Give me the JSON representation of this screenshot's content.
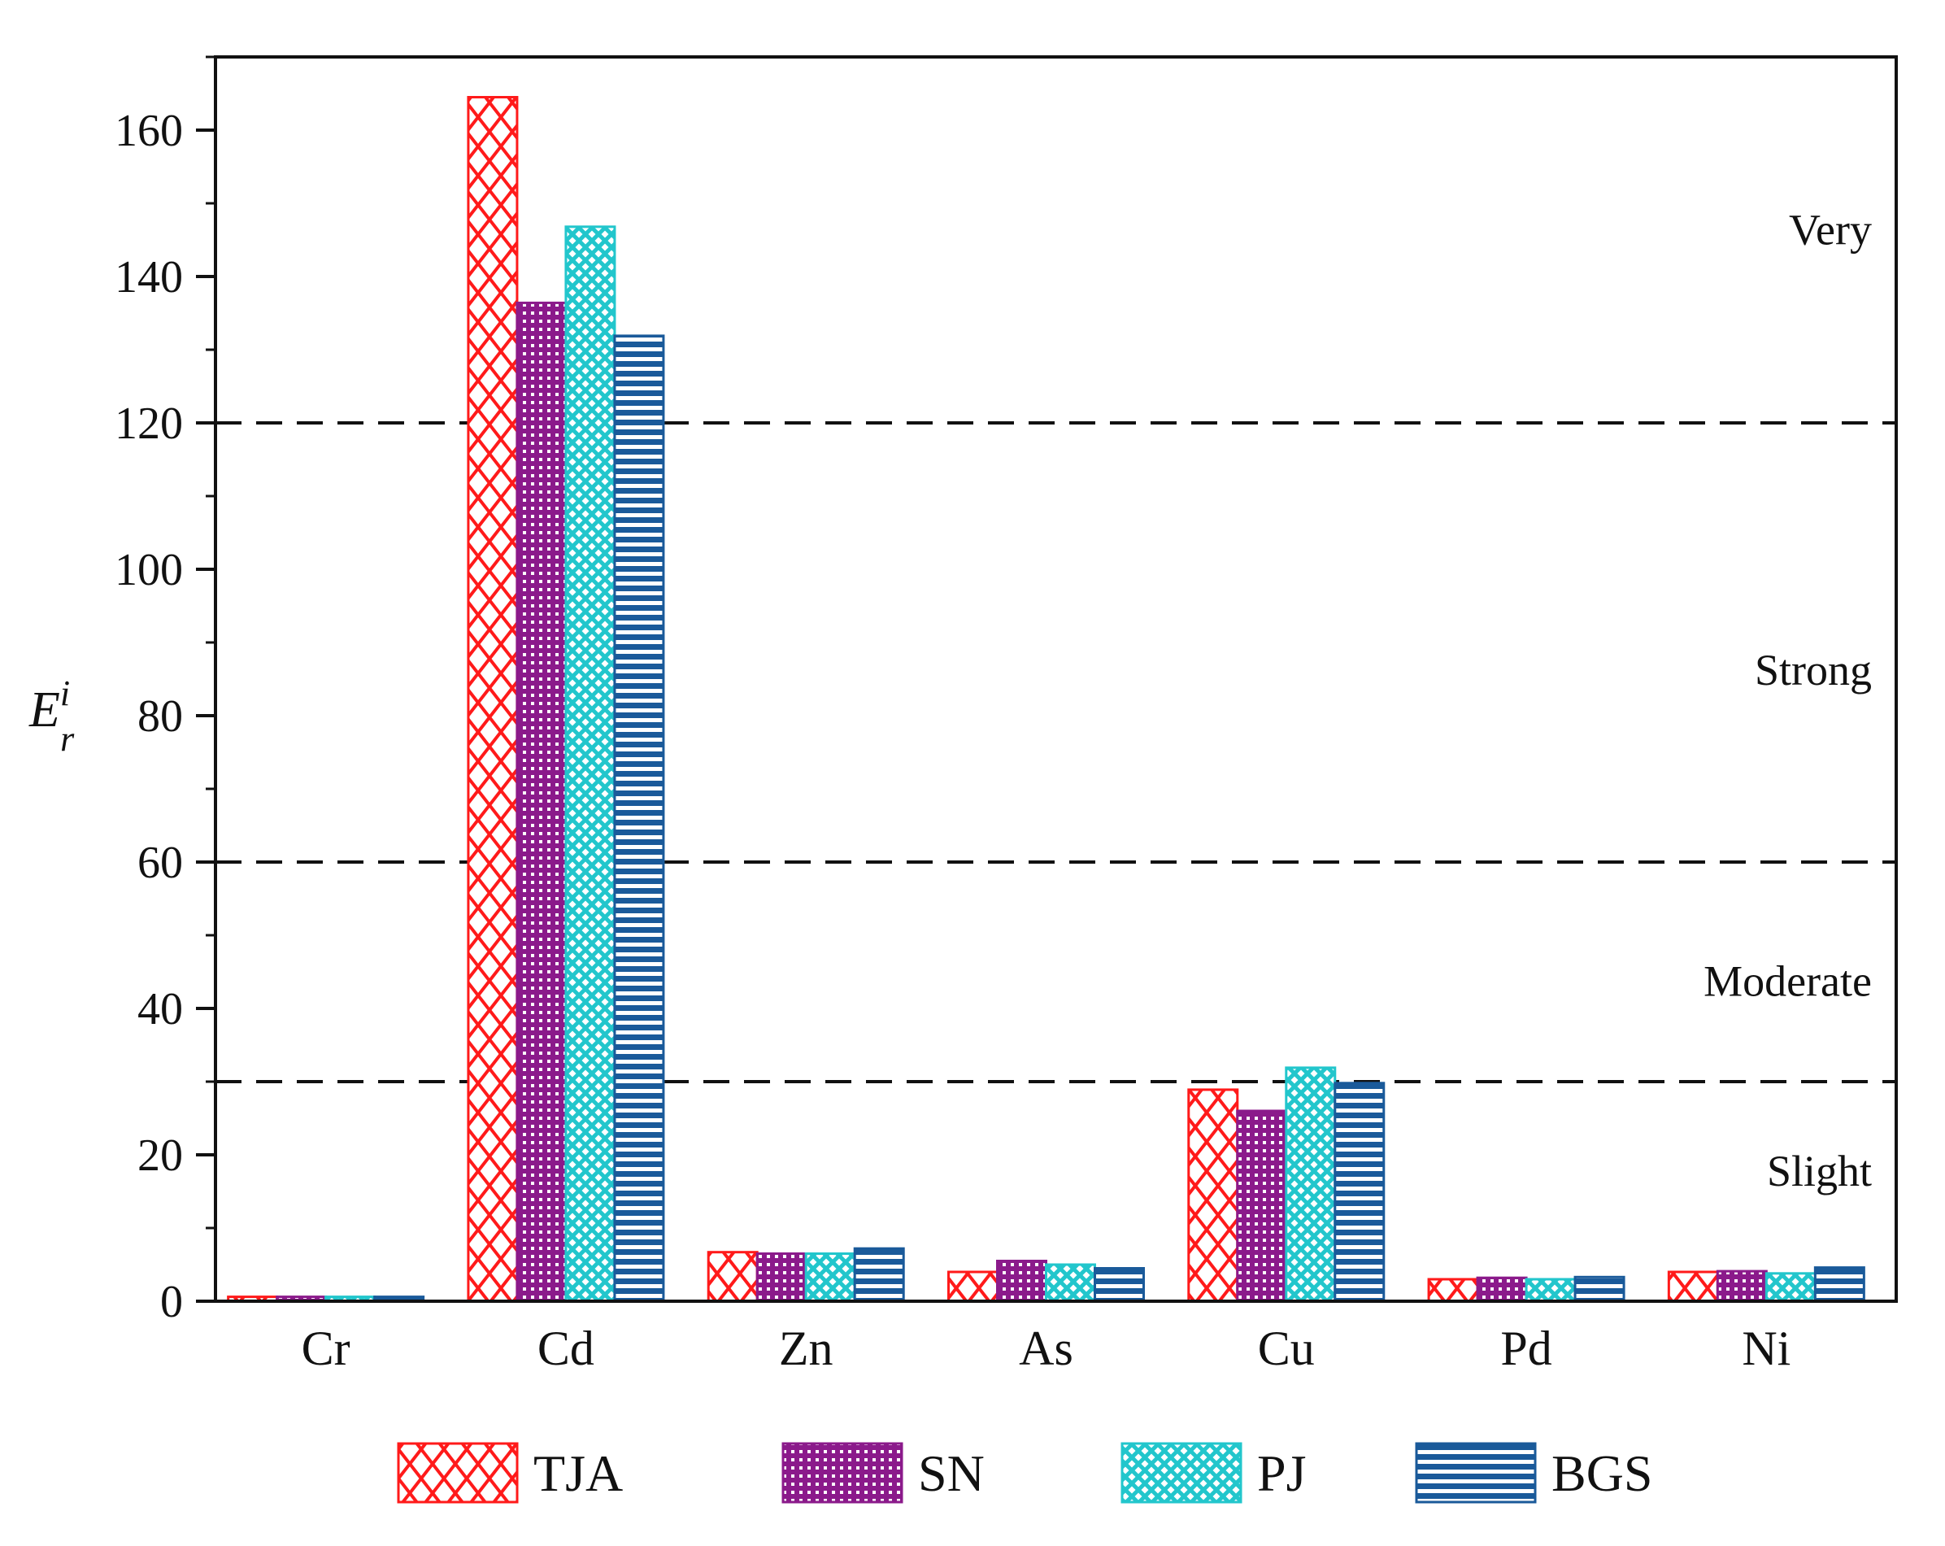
{
  "chart_data": {
    "type": "bar",
    "title": "",
    "xlabel": "",
    "ylabel": {
      "base": "E",
      "subscript": "r",
      "superscript": "i"
    },
    "ylim": [
      0,
      170
    ],
    "yticks": [
      0,
      20,
      40,
      60,
      80,
      100,
      120,
      140,
      160
    ],
    "categories": [
      "Cr",
      "Cd",
      "Zn",
      "As",
      "Cu",
      "Pd",
      "Ni"
    ],
    "series": [
      {
        "name": "TJA",
        "color": "#ff1a1a",
        "pattern": "cross-hatch",
        "values": [
          0.6,
          164.5,
          6.7,
          4.0,
          28.9,
          3.0,
          4.0
        ]
      },
      {
        "name": "SN",
        "color": "#8b1a8b",
        "pattern": "grid",
        "values": [
          0.6,
          136.4,
          6.5,
          5.5,
          26.0,
          3.2,
          4.1
        ]
      },
      {
        "name": "PJ",
        "color": "#22c6cc",
        "pattern": "diamond-mesh",
        "values": [
          0.6,
          146.8,
          6.5,
          5.0,
          31.9,
          3.0,
          3.8
        ]
      },
      {
        "name": "BGS",
        "color": "#1a5a9a",
        "pattern": "horizontal-lines",
        "values": [
          0.6,
          131.9,
          7.2,
          4.5,
          29.8,
          3.3,
          4.6
        ]
      }
    ],
    "thresholds": [
      {
        "value": 30,
        "style": "dashed"
      },
      {
        "value": 60,
        "style": "dashed"
      },
      {
        "value": 120,
        "style": "dashed"
      }
    ],
    "zones": [
      {
        "label": "Slight",
        "value": 17.8
      },
      {
        "label": "Moderate",
        "value": 43.7
      },
      {
        "label": "Strong",
        "value": 86.2
      },
      {
        "label": "Very",
        "value": 146.4
      }
    ],
    "legend_position": "bottom",
    "grid": false
  }
}
